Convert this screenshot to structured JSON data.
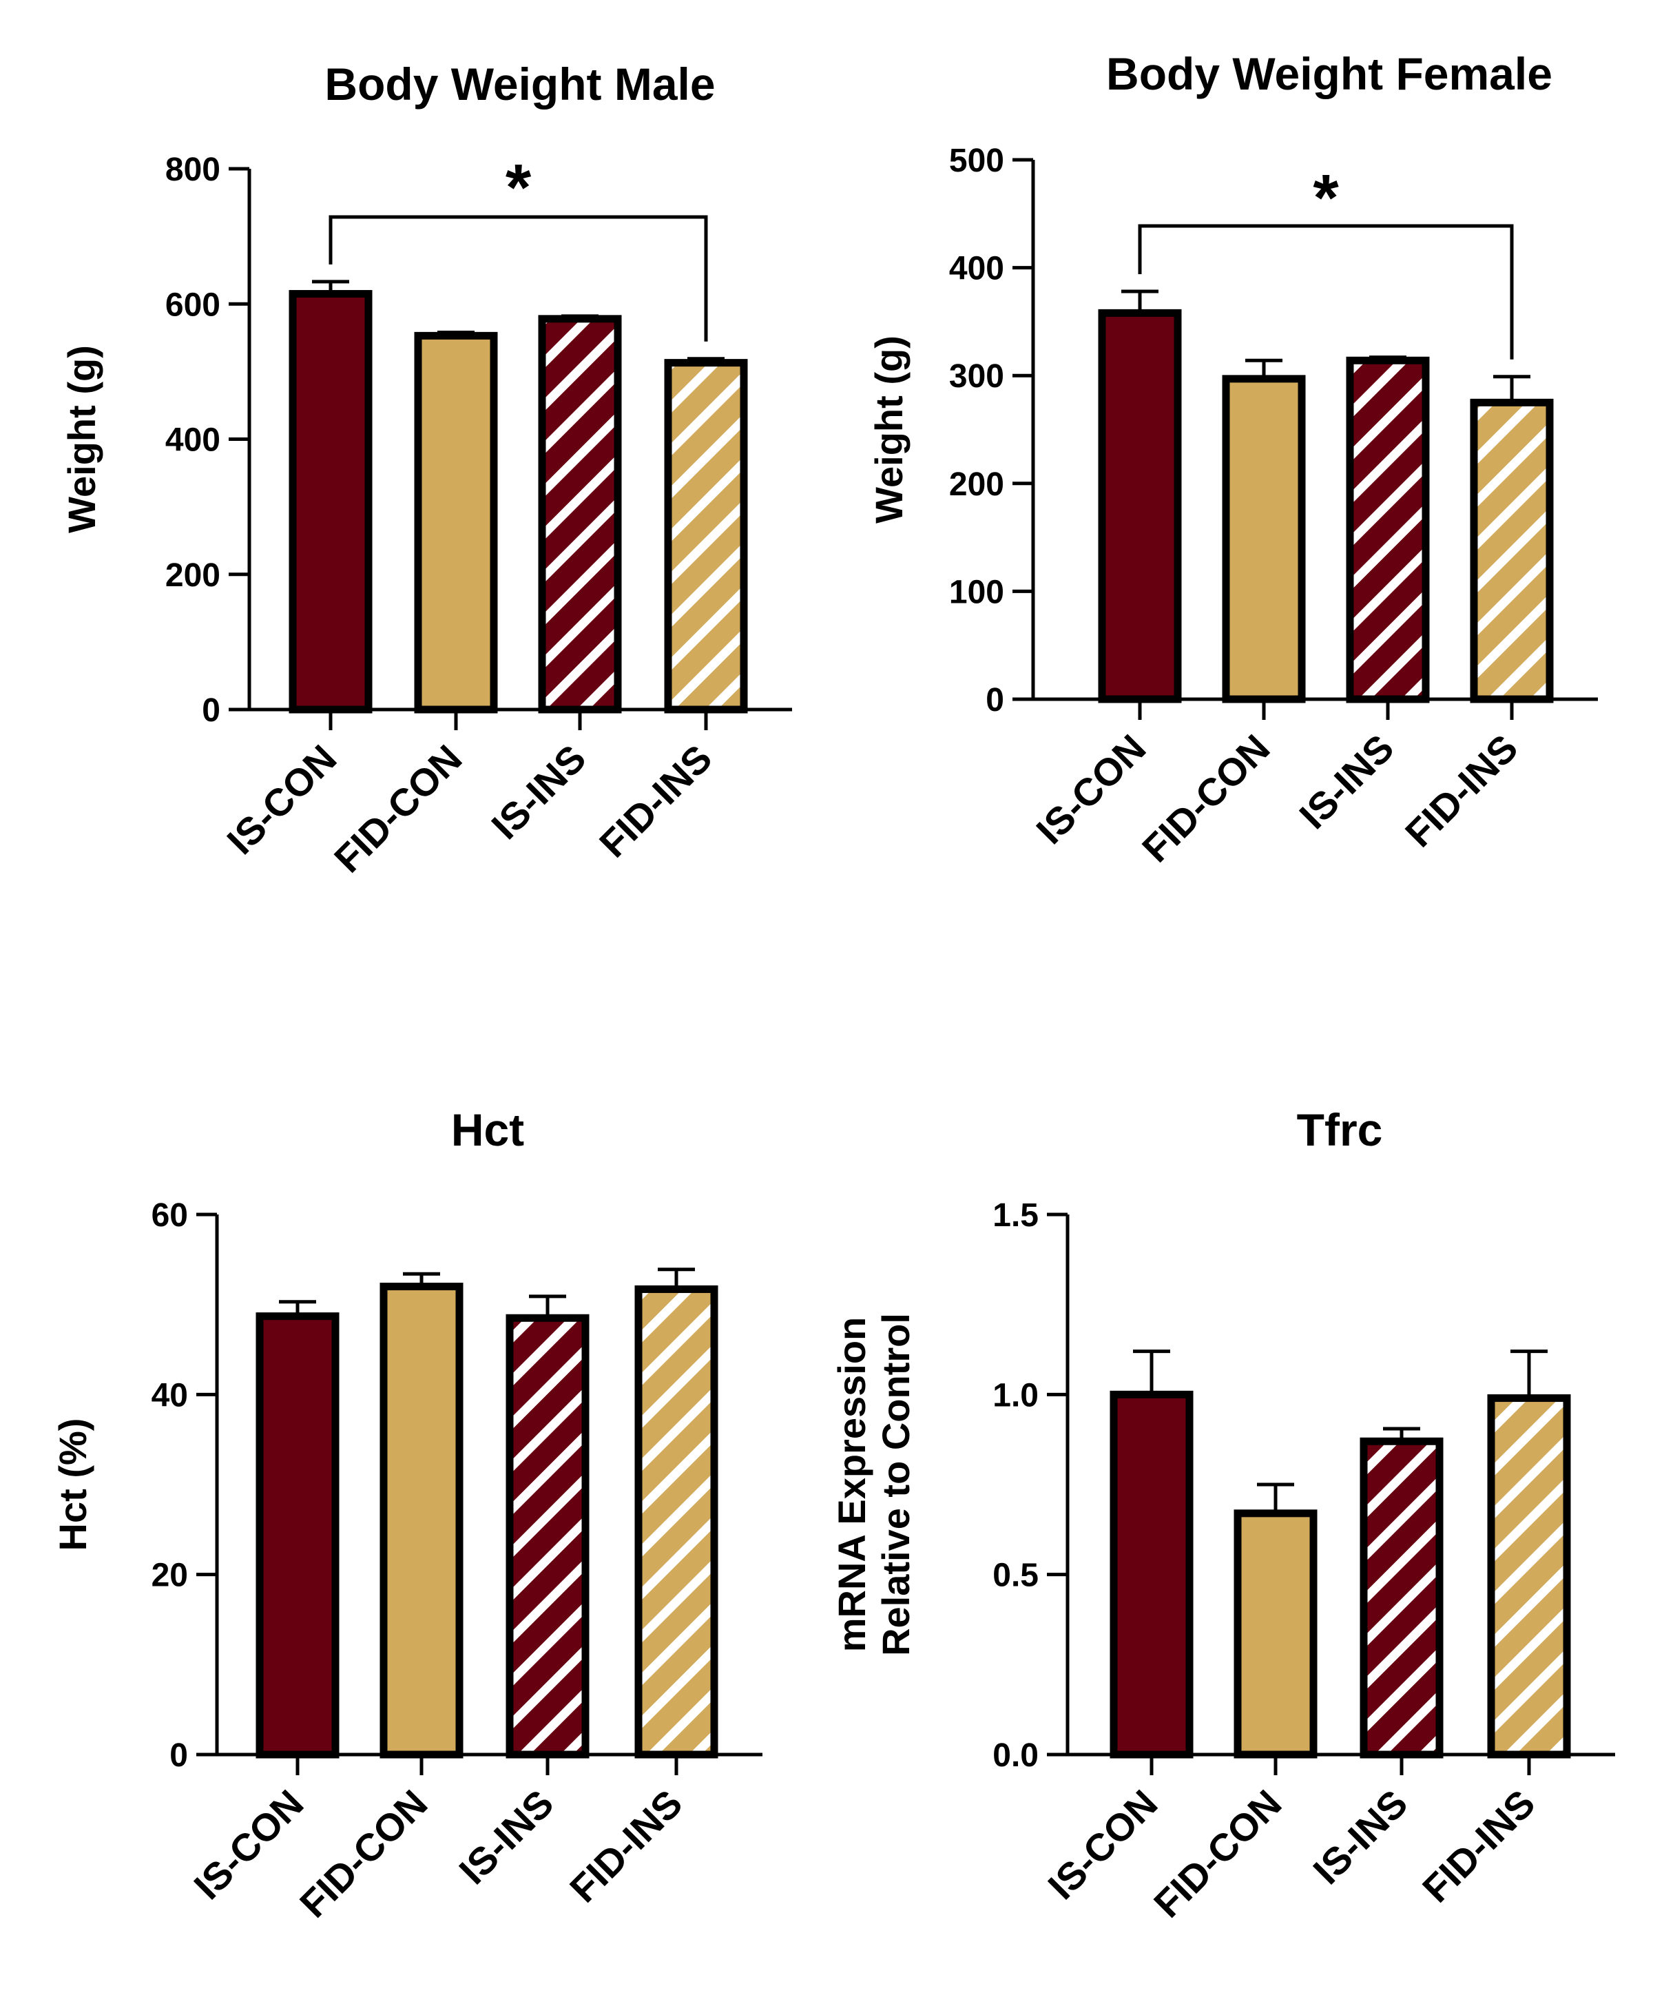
{
  "colors": {
    "is": "#660011",
    "fid": "#D2AA5C",
    "stripe": "#ffffff",
    "axis": "#000000"
  },
  "chart_data": [
    {
      "type": "bar",
      "title": "Body Weight Male",
      "ylabel": "Weight (g)",
      "ylabel_lines": [
        "Weight (g)"
      ],
      "ylim": [
        0,
        800
      ],
      "yticks": [
        "0",
        "200",
        "400",
        "600",
        "800"
      ],
      "categories": [
        "IS-CON",
        "FID-CON",
        "IS-INS",
        "FID-INS"
      ],
      "values": [
        615,
        553,
        578,
        513
      ],
      "errors": [
        18,
        5,
        4,
        6
      ],
      "fills": [
        "is",
        "fid",
        "is",
        "fid"
      ],
      "hatched": [
        false,
        false,
        true,
        true
      ],
      "significance": {
        "from": 0,
        "to": 3,
        "label": "*"
      }
    },
    {
      "type": "bar",
      "title": "Body Weight Female",
      "ylabel": "Weight (g)",
      "ylabel_lines": [
        "Weight (g)"
      ],
      "ylim": [
        0,
        500
      ],
      "yticks": [
        "0",
        "100",
        "200",
        "300",
        "400",
        "500"
      ],
      "categories": [
        "IS-CON",
        "FID-CON",
        "IS-INS",
        "FID-INS"
      ],
      "values": [
        358,
        297,
        314,
        275
      ],
      "errors": [
        20,
        17,
        3,
        24
      ],
      "fills": [
        "is",
        "fid",
        "is",
        "fid"
      ],
      "hatched": [
        false,
        false,
        true,
        true
      ],
      "significance": {
        "from": 0,
        "to": 3,
        "label": "*"
      }
    },
    {
      "type": "bar",
      "title": "Hct",
      "ylabel": "Hct (%)",
      "ylabel_lines": [
        "Hct (%)"
      ],
      "ylim": [
        0,
        60
      ],
      "yticks": [
        "0",
        "20",
        "40",
        "60"
      ],
      "categories": [
        "IS-CON",
        "FID-CON",
        "IS-INS",
        "FID-INS"
      ],
      "values": [
        48.7,
        52.0,
        48.5,
        51.7
      ],
      "errors": [
        1.6,
        1.4,
        2.4,
        2.2
      ],
      "fills": [
        "is",
        "fid",
        "is",
        "fid"
      ],
      "hatched": [
        false,
        false,
        true,
        true
      ]
    },
    {
      "type": "bar",
      "title": "Tfrc",
      "ylabel": "mRNA Expression Relative to Control",
      "ylabel_lines": [
        "mRNA Expression",
        "Relative to Control"
      ],
      "ylim": [
        0,
        1.5
      ],
      "yticks": [
        "0.0",
        "0.5",
        "1.0",
        "1.5"
      ],
      "categories": [
        "IS-CON",
        "FID-CON",
        "IS-INS",
        "FID-INS"
      ],
      "values": [
        1.0,
        0.67,
        0.87,
        0.99
      ],
      "errors": [
        0.12,
        0.08,
        0.035,
        0.13
      ],
      "fills": [
        "is",
        "fid",
        "is",
        "fid"
      ],
      "hatched": [
        false,
        false,
        true,
        true
      ]
    }
  ]
}
